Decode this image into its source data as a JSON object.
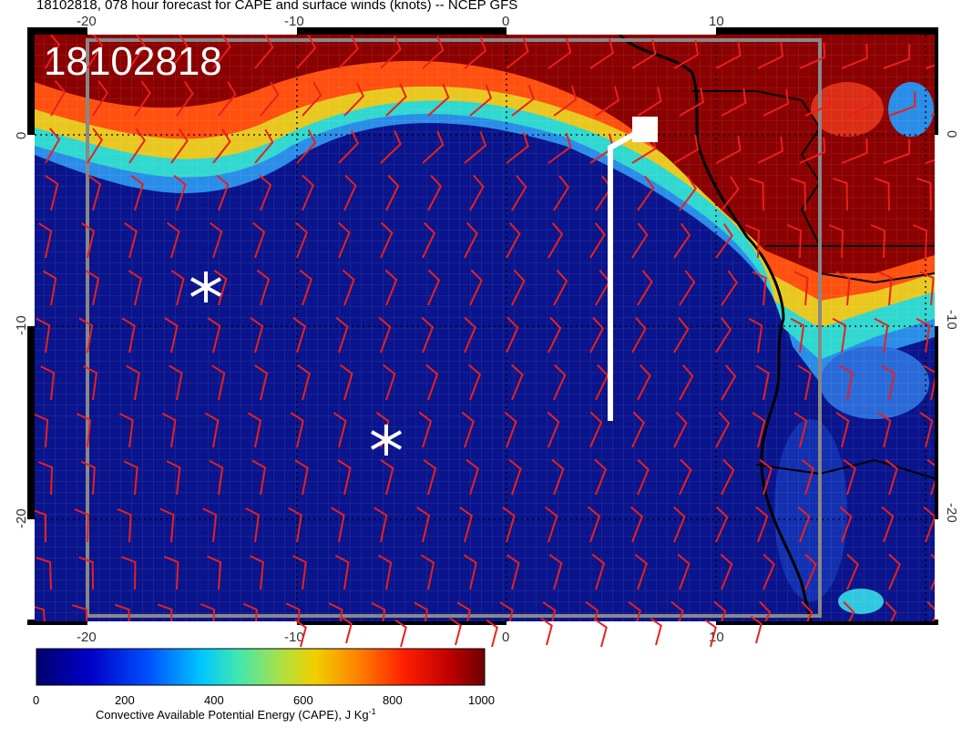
{
  "title": "18102818, 078 hour forecast for CAPE and surface winds (knots) -- NCEP GFS",
  "stamp": "18102818",
  "axes": {
    "lon_ticks": [
      "-20",
      "-10",
      "0",
      "10"
    ],
    "lat_ticks": [
      "0",
      "-10",
      "-20"
    ]
  },
  "colorbar": {
    "ticks": [
      "0",
      "200",
      "400",
      "600",
      "800",
      "1000"
    ],
    "label": "Convective Available Potential Energy (CAPE), J Kg",
    "label_sup": "-1",
    "colors": [
      "#00008b",
      "#0030d0",
      "#00a0ff",
      "#30e0c0",
      "#c0e030",
      "#ffb000",
      "#ff3000",
      "#8b0000"
    ]
  },
  "markers": {
    "asterisks": 2,
    "flight_track": "white line with square endpoint"
  },
  "colors": {
    "ocean_cape": "#0a1a8c",
    "high_cape": "#8b0000",
    "wind_barbs": "#e8201c",
    "track": "#ffffff"
  }
}
